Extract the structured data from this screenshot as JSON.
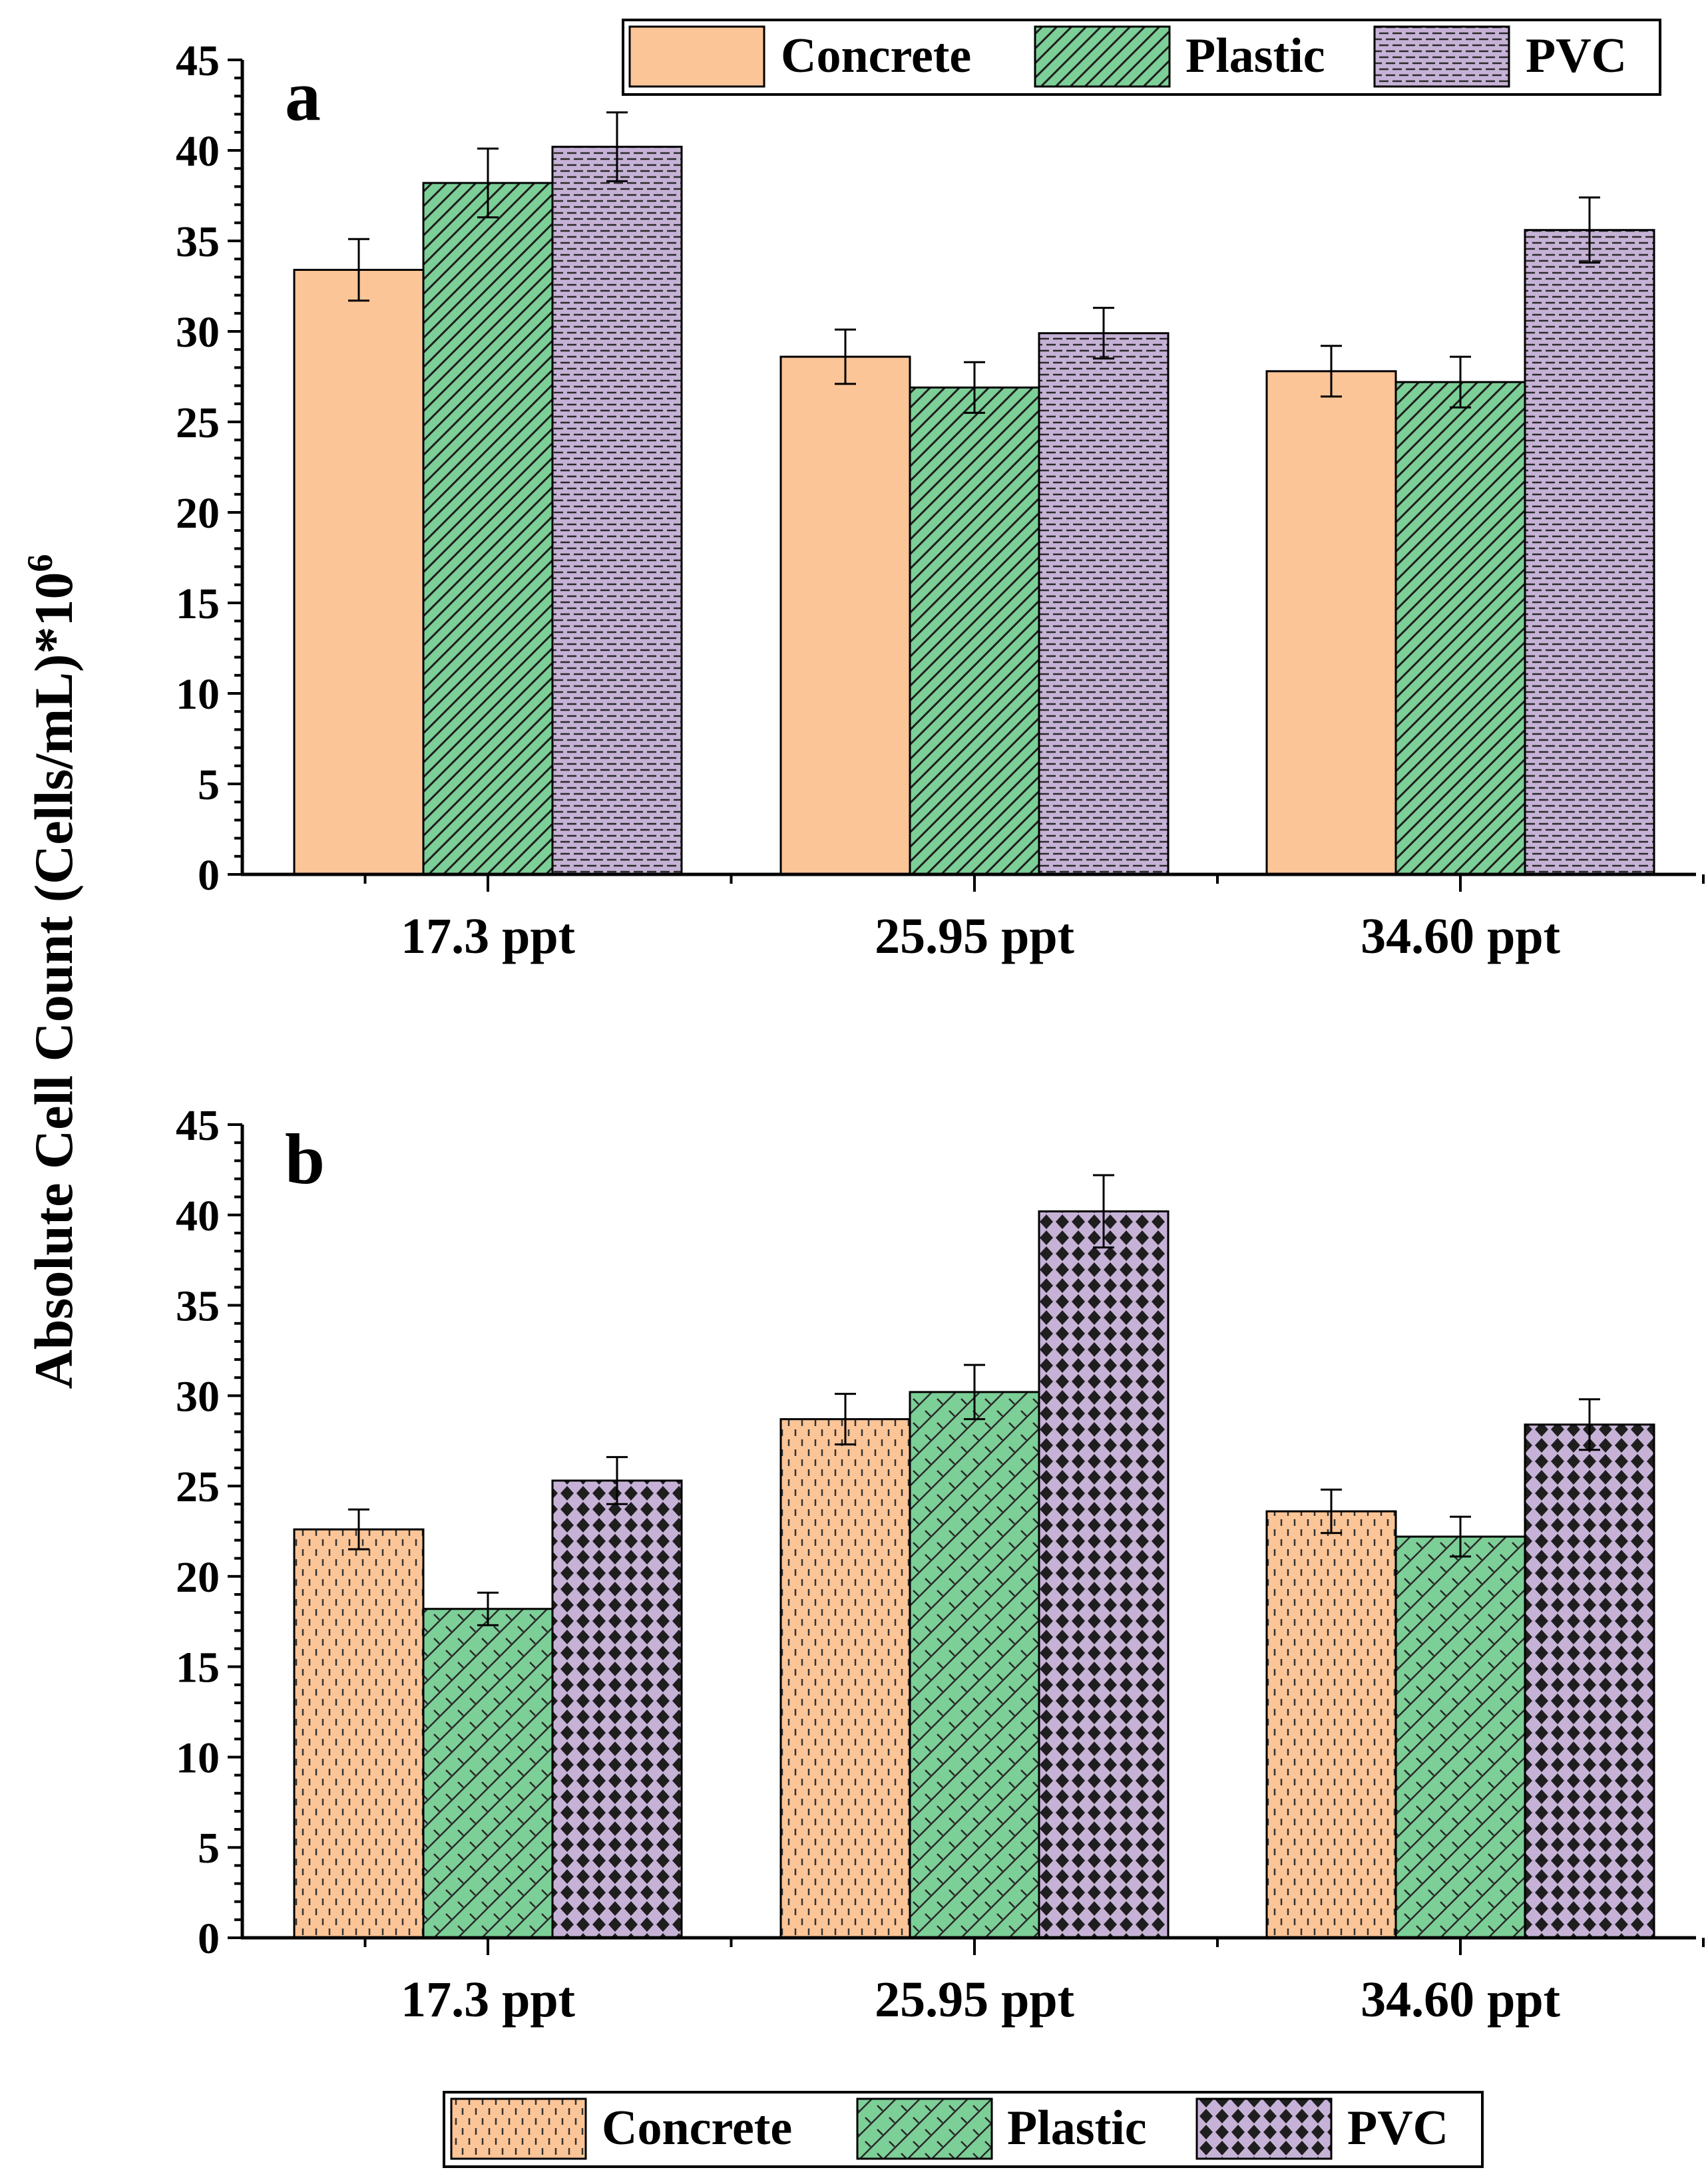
{
  "figure": {
    "ylabel": "Absolute Cell Count (Cells/mL)*10",
    "ylabel_superscript": "6"
  },
  "colors": {
    "concrete": "#fcc597",
    "plastic": "#7ccf97",
    "pvc": "#c6b2d6"
  },
  "chart_data": [
    {
      "type": "bar",
      "panel": "a",
      "categories": [
        "17.3 ppt",
        "25.95 ppt",
        "34.60 ppt"
      ],
      "series": [
        {
          "name": "Concrete",
          "values": [
            33.4,
            28.6,
            27.8
          ],
          "errors": [
            1.7,
            1.5,
            1.4
          ]
        },
        {
          "name": "Plastic",
          "values": [
            38.2,
            26.9,
            27.2
          ],
          "errors": [
            1.9,
            1.4,
            1.4
          ]
        },
        {
          "name": "PVC",
          "values": [
            40.2,
            29.9,
            35.6
          ],
          "errors": [
            1.9,
            1.4,
            1.8
          ]
        }
      ],
      "xlabel": "",
      "ylabel": "Absolute Cell Count (Cells/mL)*10^6",
      "ylim": [
        0,
        45
      ],
      "yticks": [
        0,
        5,
        10,
        15,
        20,
        25,
        30,
        35,
        40,
        45
      ],
      "legend": {
        "position": "top-right",
        "entries": [
          "Concrete",
          "Plastic",
          "PVC"
        ]
      }
    },
    {
      "type": "bar",
      "panel": "b",
      "categories": [
        "17.3 ppt",
        "25.95 ppt",
        "34.60 ppt"
      ],
      "series": [
        {
          "name": "Concrete",
          "values": [
            22.6,
            28.7,
            23.6
          ],
          "errors": [
            1.1,
            1.4,
            1.2
          ]
        },
        {
          "name": "Plastic",
          "values": [
            18.2,
            30.2,
            22.2
          ],
          "errors": [
            0.9,
            1.5,
            1.1
          ]
        },
        {
          "name": "PVC",
          "values": [
            25.3,
            40.2,
            28.4
          ],
          "errors": [
            1.3,
            2.0,
            1.4
          ]
        }
      ],
      "xlabel": "",
      "ylabel": "Absolute Cell Count (Cells/mL)*10^6",
      "ylim": [
        0,
        45
      ],
      "yticks": [
        0,
        5,
        10,
        15,
        20,
        25,
        30,
        35,
        40,
        45
      ],
      "legend": {
        "position": "bottom-center",
        "entries": [
          "Concrete",
          "Plastic",
          "PVC"
        ]
      }
    }
  ]
}
